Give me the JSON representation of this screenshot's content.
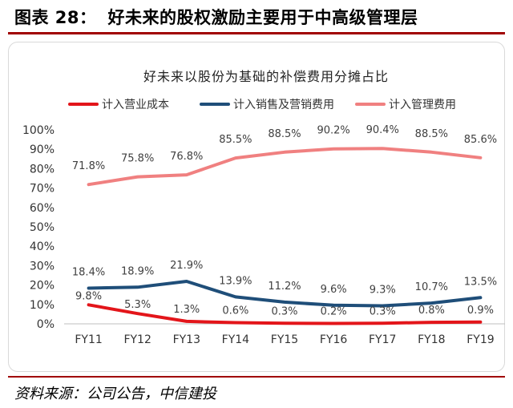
{
  "figure": {
    "label": "图表 28：",
    "heading": "好未来的股权激励主要用于中高级管理层",
    "source": "资料来源：公司公告，中信建投"
  },
  "chart_data": {
    "type": "line",
    "title": "好未来以股份为基础的补偿费用分摊占比",
    "xlabel": "",
    "ylabel": "",
    "categories": [
      "FY11",
      "FY12",
      "FY13",
      "FY14",
      "FY15",
      "FY16",
      "FY17",
      "FY18",
      "FY19"
    ],
    "ylim": [
      0,
      100
    ],
    "yticks": [
      "0%",
      "10%",
      "20%",
      "30%",
      "40%",
      "50%",
      "60%",
      "70%",
      "80%",
      "90%",
      "100%"
    ],
    "grid": false,
    "legend_position": "top",
    "series": [
      {
        "name": "计入营业成本",
        "color": "#e3151a",
        "values": [
          9.8,
          5.3,
          1.3,
          0.6,
          0.3,
          0.2,
          0.3,
          0.8,
          0.9
        ],
        "labels": [
          "9.8%",
          "5.3%",
          "1.3%",
          "0.6%",
          "0.3%",
          "0.2%",
          "0.3%",
          "0.8%",
          "0.9%"
        ]
      },
      {
        "name": "计入销售及营销费用",
        "color": "#1f4e79",
        "values": [
          18.4,
          18.9,
          21.9,
          13.9,
          11.2,
          9.6,
          9.3,
          10.7,
          13.5
        ],
        "labels": [
          "18.4%",
          "18.9%",
          "21.9%",
          "13.9%",
          "11.2%",
          "9.6%",
          "9.3%",
          "10.7%",
          "13.5%"
        ]
      },
      {
        "name": "计入管理费用",
        "color": "#f08080",
        "values": [
          71.8,
          75.8,
          76.8,
          85.5,
          88.5,
          90.2,
          90.4,
          88.5,
          85.6
        ],
        "labels": [
          "71.8%",
          "75.8%",
          "76.8%",
          "85.5%",
          "88.5%",
          "90.2%",
          "90.4%",
          "88.5%",
          "85.6%"
        ]
      }
    ]
  }
}
